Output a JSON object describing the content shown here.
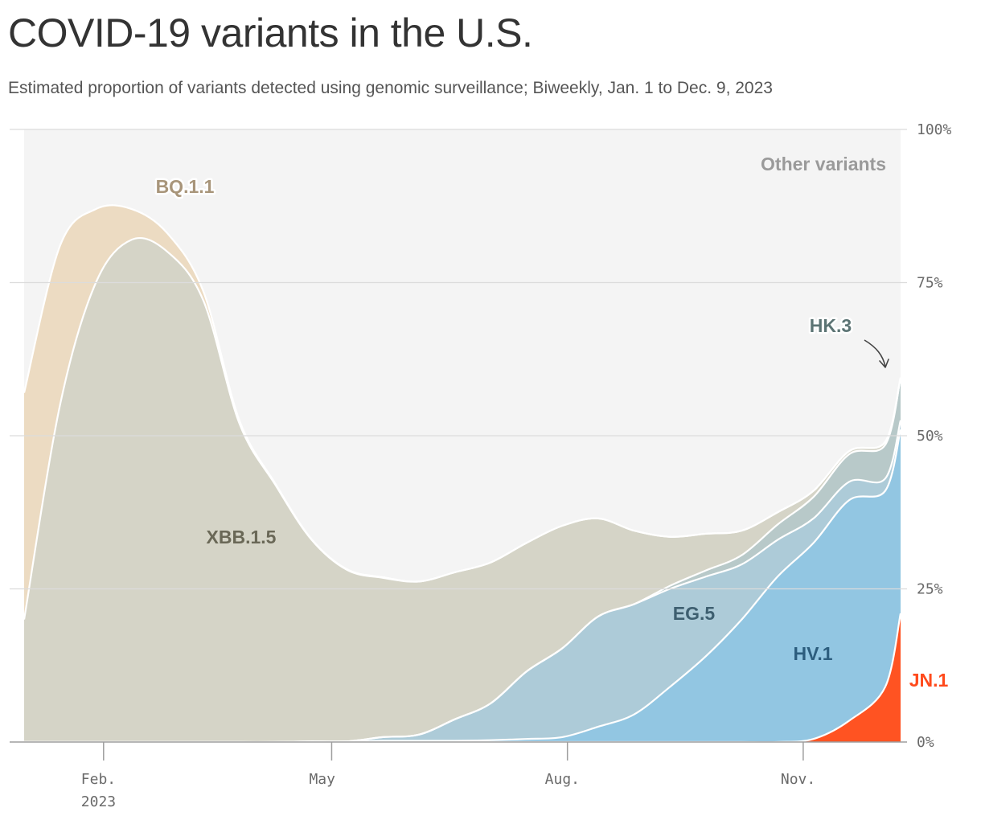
{
  "title": "COVID-19 variants in the U.S.",
  "subtitle": "Estimated proportion of variants detected using genomic surveillance; Biweekly, Jan. 1 to Dec. 9, 2023",
  "chart_data": {
    "type": "area",
    "stacked": true,
    "title": "COVID-19 variants in the U.S.",
    "subtitle": "Estimated proportion of variants detected using genomic surveillance; Biweekly, Jan. 1 to Dec. 9, 2023",
    "xlabel": "",
    "ylabel": "",
    "x": [
      "2023-01-01",
      "2023-01-15",
      "2023-01-29",
      "2023-02-12",
      "2023-02-26",
      "2023-03-12",
      "2023-03-26",
      "2023-04-09",
      "2023-04-23",
      "2023-05-07",
      "2023-05-21",
      "2023-06-04",
      "2023-06-18",
      "2023-07-02",
      "2023-07-16",
      "2023-07-30",
      "2023-08-13",
      "2023-08-27",
      "2023-09-10",
      "2023-09-24",
      "2023-10-08",
      "2023-10-22",
      "2023-11-05",
      "2023-11-19",
      "2023-12-03",
      "2023-12-09"
    ],
    "xlim": [
      "2023-01-01",
      "2023-12-09"
    ],
    "ylim": [
      0,
      100
    ],
    "y_unit": "%",
    "y_ticks": [
      {
        "value": 0,
        "label": "0%"
      },
      {
        "value": 25,
        "label": "25%"
      },
      {
        "value": 50,
        "label": "50%"
      },
      {
        "value": 75,
        "label": "75%"
      },
      {
        "value": 100,
        "label": "100%"
      }
    ],
    "x_ticks": [
      {
        "date": "2023-02-01",
        "label": "Feb.",
        "sublabel": "2023"
      },
      {
        "date": "2023-05-01",
        "label": "May",
        "sublabel": ""
      },
      {
        "date": "2023-08-01",
        "label": "Aug.",
        "sublabel": ""
      },
      {
        "date": "2023-11-01",
        "label": "Nov.",
        "sublabel": ""
      }
    ],
    "grid": true,
    "series": [
      {
        "name": "JN.1",
        "color": "#ff5322",
        "label_color": "#ff4a1c",
        "values": [
          0,
          0,
          0,
          0,
          0,
          0,
          0,
          0,
          0,
          0,
          0,
          0,
          0,
          0,
          0,
          0,
          0,
          0,
          0,
          0,
          0,
          0,
          0.5,
          3.5,
          9,
          21
        ]
      },
      {
        "name": "HV.1",
        "color": "#92c6e2",
        "label_color": "#2c5d7e",
        "values": [
          0,
          0,
          0,
          0,
          0,
          0,
          0,
          0,
          0.1,
          0.1,
          0.2,
          0.2,
          0.2,
          0.3,
          0.5,
          0.8,
          2.5,
          4.5,
          9,
          14,
          20,
          27,
          32,
          36,
          32,
          30
        ]
      },
      {
        "name": "EG.5",
        "color": "#adcbd8",
        "label_color": "#3e5f70",
        "values": [
          0,
          0,
          0,
          0,
          0,
          0,
          0,
          0,
          0,
          0,
          0.6,
          1,
          3.5,
          6,
          11,
          14.5,
          18,
          18,
          16,
          13,
          9,
          6,
          4,
          3,
          2,
          1.5
        ]
      },
      {
        "name": "HK.3",
        "color": "#b8c9c9",
        "label_color": "#5c7474",
        "values": [
          0,
          0,
          0,
          0,
          0,
          0,
          0,
          0,
          0,
          0,
          0,
          0,
          0,
          0,
          0,
          0,
          0,
          0,
          0.5,
          1,
          1.5,
          2.5,
          3.5,
          4.5,
          5.5,
          7
        ]
      },
      {
        "name": "XBB.1.5",
        "color": "#d5d4c7",
        "label_color": "#6a6857",
        "values": [
          20,
          55,
          75,
          82,
          80,
          72,
          52,
          42,
          33,
          28,
          26,
          25,
          24,
          23,
          21,
          20,
          16,
          12,
          8,
          6,
          4,
          2,
          1,
          0.5,
          0.5,
          0
        ]
      },
      {
        "name": "BQ.1.1",
        "color": "#ecdbc2",
        "label_color": "#a8957a",
        "values": [
          37,
          26,
          12,
          5,
          3,
          1.5,
          0.5,
          0.2,
          0.1,
          0.1,
          0.1,
          0,
          0,
          0,
          0,
          0,
          0,
          0,
          0,
          0,
          0,
          0,
          0,
          0,
          0,
          0
        ]
      },
      {
        "name": "Other variants",
        "color": "#f4f4f4",
        "label_color": "#9a9a9a",
        "values": [
          43,
          19,
          13,
          13,
          17,
          26.5,
          47.5,
          57.8,
          66.8,
          71.8,
          73.1,
          73.8,
          72.3,
          70.7,
          67.5,
          64.7,
          63.5,
          65.5,
          66.5,
          66,
          65.5,
          62.5,
          59,
          52.5,
          50.5,
          40.5
        ]
      }
    ]
  }
}
